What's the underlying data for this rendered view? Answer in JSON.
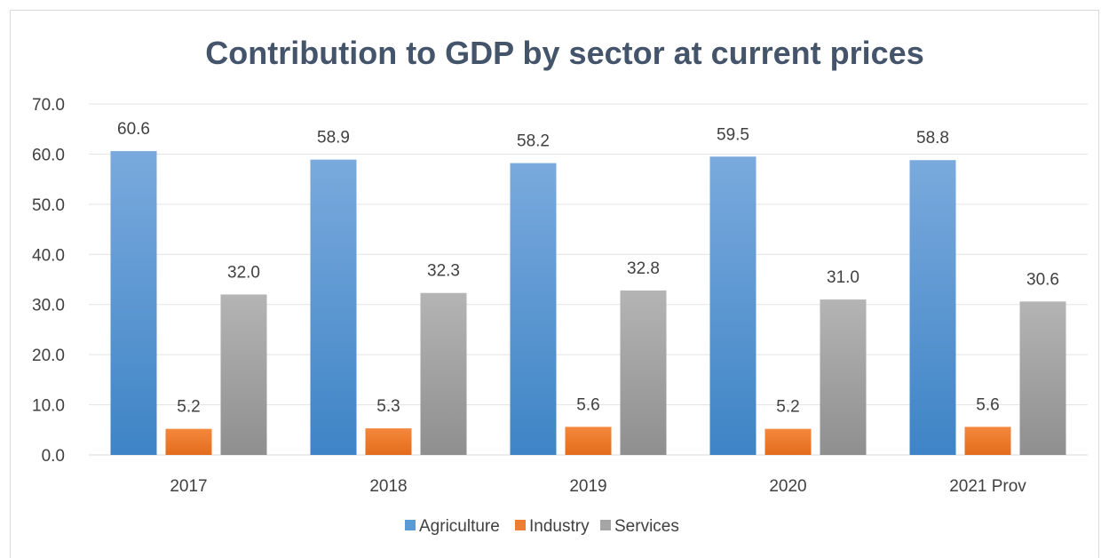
{
  "chart_data": {
    "type": "bar",
    "title": "Contribution to GDP by sector at current prices",
    "xlabel": "",
    "ylabel": "",
    "categories": [
      "2017",
      "2018",
      "2019",
      "2020",
      "2021 Prov"
    ],
    "series": [
      {
        "name": "Agriculture",
        "values": [
          60.6,
          58.9,
          58.2,
          59.5,
          58.8
        ],
        "color": "#5b9bd5"
      },
      {
        "name": "Industry",
        "values": [
          5.2,
          5.3,
          5.6,
          5.2,
          5.6
        ],
        "color": "#ed7d31"
      },
      {
        "name": "Services",
        "values": [
          32.0,
          32.3,
          32.8,
          31.0,
          30.6
        ],
        "color": "#a5a5a5"
      }
    ],
    "ylim": [
      0,
      70
    ],
    "yticks": [
      "0.0",
      "10.0",
      "20.0",
      "30.0",
      "40.0",
      "50.0",
      "60.0",
      "70.0"
    ],
    "data_labels": [
      [
        "60.6",
        "58.9",
        "58.2",
        "59.5",
        "58.8"
      ],
      [
        "5.2",
        "5.3",
        "5.6",
        "5.2",
        "5.6"
      ],
      [
        "32.0",
        "32.3",
        "32.8",
        "31.0",
        "30.6"
      ]
    ],
    "grid": true,
    "legend": "bottom"
  }
}
